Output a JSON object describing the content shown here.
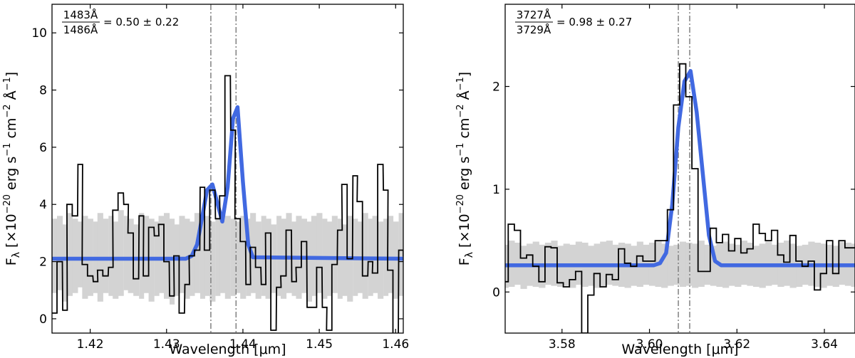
{
  "chart_data": [
    {
      "type": "line",
      "xlabel": "Wavelength [μm]",
      "ylabel": "F_λ [×10^-20 erg s^-1 cm^-2 Å^-1]",
      "ylabel_parts": {
        "a": "F",
        "b": "λ",
        "c": " [×10",
        "d": "−20",
        "e": " erg s",
        "f": "−1",
        "g": " cm",
        "h": "−2",
        "i": " Å",
        "j": "−1",
        "k": "]"
      },
      "xlim": [
        1.415,
        1.461
      ],
      "ylim": [
        -0.5,
        11.0
      ],
      "xticks": [
        1.42,
        1.43,
        1.44,
        1.45,
        1.46
      ],
      "xtick_labels": [
        "1.42",
        "1.43",
        "1.44",
        "1.45",
        "1.46"
      ],
      "yticks": [
        0,
        2,
        4,
        6,
        8,
        10
      ],
      "ytick_labels": [
        "0",
        "2",
        "4",
        "6",
        "8",
        "10"
      ],
      "annotation": {
        "num": "1483Å",
        "den": "1486Å",
        "value": "= 0.50 ± 0.22"
      },
      "vlines": [
        1.4358,
        1.4391
      ],
      "colors": {
        "data": "#000000",
        "model": "#4169e1",
        "error_band": "#d3d3d3",
        "vlines": "#808080"
      },
      "series": [
        {
          "style": "step",
          "x": [
            1.4153,
            1.416,
            1.4167,
            1.4173,
            1.418,
            1.4187,
            1.4193,
            1.42,
            1.4207,
            1.4213,
            1.422,
            1.4227,
            1.4233,
            1.424,
            1.4247,
            1.4253,
            1.426,
            1.4267,
            1.4273,
            1.428,
            1.4287,
            1.4293,
            1.43,
            1.4307,
            1.4313,
            1.432,
            1.4327,
            1.4333,
            1.434,
            1.4347,
            1.4353,
            1.436,
            1.4367,
            1.4373,
            1.438,
            1.4387,
            1.4393,
            1.44,
            1.4407,
            1.4413,
            1.442,
            1.4427,
            1.4433,
            1.444,
            1.4447,
            1.4453,
            1.446,
            1.4467,
            1.4473,
            1.448,
            1.4487,
            1.4493,
            1.45,
            1.4507,
            1.4513,
            1.452,
            1.4527,
            1.4533,
            1.454,
            1.4547,
            1.4553,
            1.456,
            1.4567,
            1.4573,
            1.458,
            1.4587,
            1.4593,
            1.46,
            1.4607,
            1.4613
          ],
          "y": [
            0.2,
            2.0,
            0.3,
            4.0,
            3.6,
            5.4,
            1.9,
            1.5,
            1.3,
            1.7,
            1.5,
            1.8,
            3.8,
            4.4,
            4.0,
            3.0,
            1.4,
            3.6,
            1.5,
            3.2,
            2.9,
            3.3,
            2.0,
            0.8,
            2.2,
            0.2,
            1.2,
            2.2,
            2.4,
            4.6,
            2.4,
            4.5,
            3.5,
            4.3,
            8.5,
            6.6,
            3.5,
            2.7,
            1.2,
            2.5,
            1.8,
            1.2,
            3.0,
            -0.4,
            1.1,
            1.5,
            3.1,
            1.3,
            1.8,
            2.7,
            0.4,
            0.4,
            1.8,
            0.4,
            -0.4,
            1.9,
            3.1,
            4.7,
            2.1,
            5.0,
            4.1,
            1.5,
            2.0,
            1.6,
            5.4,
            4.5,
            1.7,
            -0.9,
            2.4,
            2.2
          ]
        },
        {
          "style": "model",
          "x": [
            1.415,
            1.4325,
            1.4333,
            1.434,
            1.4347,
            1.4353,
            1.436,
            1.4367,
            1.4373,
            1.438,
            1.4387,
            1.4393,
            1.44,
            1.4407,
            1.4413,
            1.461
          ],
          "y": [
            2.1,
            2.1,
            2.2,
            2.6,
            3.6,
            4.5,
            4.7,
            4.0,
            3.4,
            4.6,
            7.0,
            7.4,
            4.8,
            2.6,
            2.15,
            2.1
          ]
        },
        {
          "style": "band",
          "x": [
            1.4153,
            1.416,
            1.4167,
            1.4173,
            1.418,
            1.4187,
            1.4193,
            1.42,
            1.4207,
            1.4213,
            1.422,
            1.4227,
            1.4233,
            1.424,
            1.4247,
            1.4253,
            1.426,
            1.4267,
            1.4273,
            1.428,
            1.4287,
            1.4293,
            1.43,
            1.4307,
            1.4313,
            1.432,
            1.4327,
            1.4333,
            1.434,
            1.4347,
            1.4353,
            1.436,
            1.4367,
            1.4373,
            1.438,
            1.4387,
            1.4393,
            1.44,
            1.4407,
            1.4413,
            1.442,
            1.4427,
            1.4433,
            1.444,
            1.4447,
            1.4453,
            1.446,
            1.4467,
            1.4473,
            1.448,
            1.4487,
            1.4493,
            1.45,
            1.4507,
            1.4513,
            1.452,
            1.4527,
            1.4533,
            1.454,
            1.4547,
            1.4553,
            1.456,
            1.4567,
            1.4573,
            1.458,
            1.4587,
            1.4593,
            1.46,
            1.4607,
            1.4613
          ],
          "low": [
            0.9,
            1.0,
            0.6,
            0.8,
            0.9,
            1.1,
            0.7,
            0.8,
            0.9,
            0.6,
            0.9,
            0.8,
            0.7,
            0.8,
            1.0,
            0.9,
            0.8,
            0.7,
            0.9,
            0.6,
            0.8,
            0.9,
            0.7,
            0.5,
            0.8,
            0.9,
            0.7,
            0.8,
            0.9,
            0.7,
            0.8,
            0.6,
            0.8,
            0.9,
            0.7,
            0.8,
            0.9,
            0.7,
            0.8,
            0.9,
            0.7,
            0.8,
            0.7,
            0.9,
            0.8,
            0.7,
            0.9,
            0.8,
            0.7,
            0.9,
            0.6,
            0.8,
            0.9,
            0.7,
            0.8,
            0.9,
            0.7,
            0.8,
            0.6,
            0.8,
            0.9,
            0.7,
            0.8,
            0.9,
            0.7,
            0.8,
            0.9,
            0.7,
            0.8,
            0.9
          ],
          "high": [
            3.5,
            3.6,
            3.3,
            3.7,
            3.5,
            3.4,
            3.6,
            3.5,
            3.4,
            3.7,
            3.5,
            3.6,
            3.4,
            3.8,
            3.6,
            3.5,
            3.3,
            3.7,
            3.6,
            3.5,
            3.4,
            3.6,
            3.7,
            3.5,
            3.3,
            3.6,
            3.5,
            3.4,
            3.7,
            3.5,
            3.6,
            3.4,
            3.5,
            3.7,
            3.6,
            3.5,
            3.4,
            3.6,
            3.5,
            3.7,
            3.4,
            3.6,
            3.5,
            3.3,
            3.6,
            3.5,
            3.7,
            3.4,
            3.6,
            3.5,
            3.4,
            3.6,
            3.7,
            3.5,
            3.4,
            3.6,
            3.5,
            3.3,
            3.6,
            3.5,
            3.4,
            3.7,
            3.5,
            3.6,
            3.4,
            3.5,
            3.6,
            3.4,
            3.7,
            3.5
          ]
        }
      ]
    },
    {
      "type": "line",
      "xlabel": "Wavelength [μm]",
      "ylabel": "F_λ [×10^-20 erg s^-1 cm^-2 Å^-1]",
      "ylabel_parts": {
        "a": "F",
        "b": "λ",
        "c": " [×10",
        "d": "−20",
        "e": " erg s",
        "f": "−1",
        "g": " cm",
        "h": "−2",
        "i": " Å",
        "j": "−1",
        "k": "]"
      },
      "xlim": [
        3.567,
        3.647
      ],
      "ylim": [
        -0.4,
        2.8
      ],
      "xticks": [
        3.58,
        3.6,
        3.62,
        3.64
      ],
      "xtick_labels": [
        "3.58",
        "3.60",
        "3.62",
        "3.64"
      ],
      "yticks": [
        0,
        1,
        2
      ],
      "ytick_labels": [
        "0",
        "1",
        "2"
      ],
      "annotation": {
        "num": "3727Å",
        "den": "3729Å",
        "value": "= 0.98 ± 0.27"
      },
      "vlines": [
        3.6066,
        3.6092
      ],
      "colors": {
        "data": "#000000",
        "model": "#4169e1",
        "error_band": "#d3d3d3",
        "vlines": "#808080"
      },
      "series": [
        {
          "style": "step",
          "x": [
            3.567,
            3.5684,
            3.5698,
            3.5712,
            3.5726,
            3.574,
            3.5754,
            3.5768,
            3.5782,
            3.5796,
            3.581,
            3.5824,
            3.5838,
            3.5852,
            3.5866,
            3.588,
            3.5894,
            3.5908,
            3.5922,
            3.5936,
            3.595,
            3.5964,
            3.5978,
            3.5992,
            3.6006,
            3.602,
            3.6034,
            3.6048,
            3.6062,
            3.6076,
            3.609,
            3.6104,
            3.6118,
            3.6132,
            3.6146,
            3.616,
            3.6174,
            3.6188,
            3.6202,
            3.6216,
            3.623,
            3.6244,
            3.6258,
            3.6272,
            3.6286,
            3.63,
            3.6314,
            3.6328,
            3.6342,
            3.6356,
            3.637,
            3.6384,
            3.6398,
            3.6412,
            3.6426,
            3.644,
            3.6454,
            3.6468
          ],
          "y": [
            0.1,
            0.66,
            0.6,
            0.33,
            0.36,
            0.25,
            0.1,
            0.44,
            0.43,
            0.09,
            0.05,
            0.12,
            0.2,
            -0.4,
            -0.03,
            0.18,
            0.05,
            0.17,
            0.12,
            0.42,
            0.28,
            0.25,
            0.35,
            0.3,
            0.3,
            0.5,
            0.5,
            0.8,
            1.82,
            2.22,
            1.9,
            1.2,
            0.2,
            0.2,
            0.62,
            0.48,
            0.56,
            0.4,
            0.52,
            0.38,
            0.42,
            0.66,
            0.57,
            0.5,
            0.6,
            0.36,
            0.29,
            0.55,
            0.3,
            0.25,
            0.3,
            0.02,
            0.18,
            0.5,
            0.18,
            0.5,
            0.43,
            0.43
          ]
        },
        {
          "style": "model",
          "x": [
            3.567,
            3.601,
            3.6024,
            3.6038,
            3.6052,
            3.6066,
            3.608,
            3.6094,
            3.6108,
            3.6122,
            3.6136,
            3.615,
            3.6164,
            3.647
          ],
          "y": [
            0.26,
            0.26,
            0.28,
            0.38,
            0.85,
            1.6,
            2.05,
            2.15,
            1.75,
            1.15,
            0.55,
            0.3,
            0.26,
            0.26
          ]
        },
        {
          "style": "band",
          "x": [
            3.567,
            3.5684,
            3.5698,
            3.5712,
            3.5726,
            3.574,
            3.5754,
            3.5768,
            3.5782,
            3.5796,
            3.581,
            3.5824,
            3.5838,
            3.5852,
            3.5866,
            3.588,
            3.5894,
            3.5908,
            3.5922,
            3.5936,
            3.595,
            3.5964,
            3.5978,
            3.5992,
            3.6006,
            3.602,
            3.6034,
            3.6048,
            3.6062,
            3.6076,
            3.609,
            3.6104,
            3.6118,
            3.6132,
            3.6146,
            3.616,
            3.6174,
            3.6188,
            3.6202,
            3.6216,
            3.623,
            3.6244,
            3.6258,
            3.6272,
            3.6286,
            3.63,
            3.6314,
            3.6328,
            3.6342,
            3.6356,
            3.637,
            3.6384,
            3.6398,
            3.6412,
            3.6426,
            3.644,
            3.6454,
            3.6468
          ],
          "low": [
            0.04,
            0.05,
            0.07,
            0.03,
            0.06,
            0.05,
            0.04,
            0.07,
            0.06,
            0.05,
            0.06,
            0.04,
            0.07,
            0.05,
            0.06,
            0.04,
            0.05,
            0.07,
            0.06,
            0.05,
            0.04,
            0.06,
            0.05,
            0.07,
            0.06,
            0.05,
            0.04,
            0.06,
            0.07,
            0.05,
            0.06,
            0.04,
            0.05,
            0.07,
            0.06,
            0.05,
            0.04,
            0.06,
            0.05,
            0.07,
            0.06,
            0.05,
            0.04,
            0.06,
            0.07,
            0.05,
            0.06,
            0.04,
            0.05,
            0.07,
            0.06,
            0.05,
            0.04,
            0.06,
            0.05,
            0.07,
            0.06,
            0.05
          ],
          "high": [
            0.46,
            0.5,
            0.48,
            0.45,
            0.47,
            0.49,
            0.46,
            0.48,
            0.5,
            0.45,
            0.47,
            0.46,
            0.49,
            0.48,
            0.45,
            0.47,
            0.49,
            0.5,
            0.46,
            0.48,
            0.47,
            0.45,
            0.49,
            0.46,
            0.48,
            0.5,
            0.47,
            0.45,
            0.46,
            0.49,
            0.48,
            0.47,
            0.5,
            0.46,
            0.45,
            0.48,
            0.49,
            0.47,
            0.46,
            0.5,
            0.48,
            0.45,
            0.47,
            0.49,
            0.46,
            0.48,
            0.5,
            0.47,
            0.45,
            0.46,
            0.49,
            0.48,
            0.47,
            0.46,
            0.45,
            0.49,
            0.48,
            0.47
          ]
        }
      ]
    }
  ]
}
